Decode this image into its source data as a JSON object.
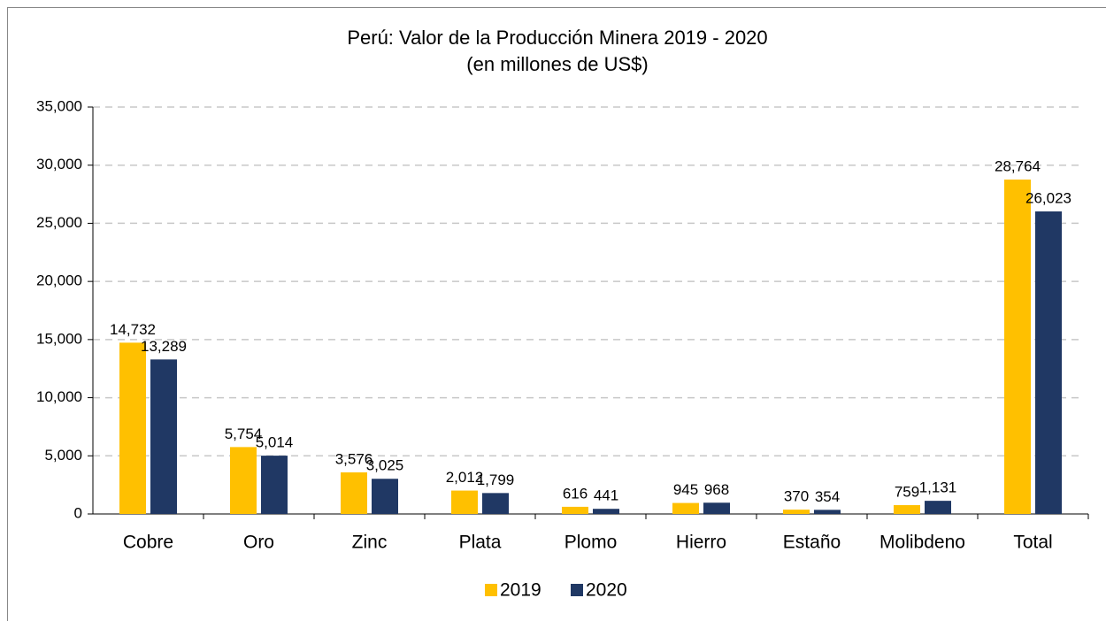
{
  "chart_data": {
    "type": "bar",
    "title": "Perú: Valor de la Producción Minera 2019 - 2020",
    "subtitle": "(en millones de US$)",
    "categories": [
      "Cobre",
      "Oro",
      "Zinc",
      "Plata",
      "Plomo",
      "Hierro",
      "Estaño",
      "Molibdeno",
      "Total"
    ],
    "series": [
      {
        "name": "2019",
        "color": "#ffc000",
        "values": [
          14732,
          5754,
          3576,
          2012,
          616,
          945,
          370,
          759,
          28764
        ],
        "value_labels": [
          "14,732",
          "5,754",
          "3,576",
          "2,012",
          "616",
          "945",
          "370",
          "759",
          "28,764"
        ]
      },
      {
        "name": "2020",
        "color": "#203864",
        "values": [
          13289,
          5014,
          3025,
          1799,
          441,
          968,
          354,
          1131,
          26023
        ],
        "value_labels": [
          "13,289",
          "5,014",
          "3,025",
          "1,799",
          "441",
          "968",
          "354",
          "1,131",
          "26,023"
        ]
      }
    ],
    "ylim": [
      0,
      35000
    ],
    "yticks": [
      0,
      {
        "value": 5000,
        "label": "5,000"
      },
      {
        "value": 10000,
        "label": "10,000"
      },
      {
        "value": 15000,
        "label": "15,000"
      },
      {
        "value": 20000,
        "label": "20,000"
      },
      {
        "value": 25000,
        "label": "25,000"
      },
      {
        "value": 30000,
        "label": "30,000"
      },
      {
        "value": 35000,
        "label": "35,000"
      }
    ],
    "grid": true,
    "legend": "bottom"
  }
}
